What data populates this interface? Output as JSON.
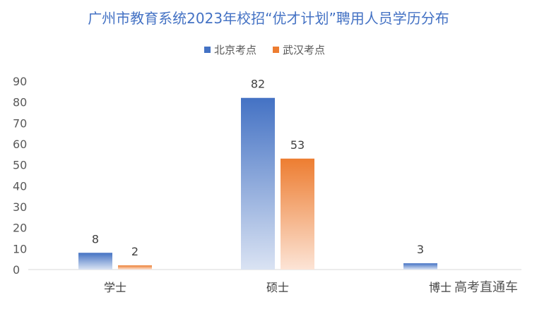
{
  "chart_data": {
    "type": "bar",
    "title": "广州市教育系统2023年校招“优才计划”聘用人员学历分布",
    "categories": [
      "学士",
      "硕士",
      "博士"
    ],
    "series": [
      {
        "name": "北京考点",
        "values": [
          8,
          82,
          3
        ],
        "color": "#4472c4"
      },
      {
        "name": "武汉考点",
        "values": [
          2,
          53,
          null
        ],
        "color": "#ed7d31"
      }
    ],
    "ylim": [
      0,
      90
    ],
    "yticks": [
      0,
      10,
      20,
      30,
      40,
      50,
      60,
      70,
      80,
      90
    ],
    "legend_position": "top",
    "grid": false,
    "data_labels": true
  },
  "watermark": "高考直通车"
}
